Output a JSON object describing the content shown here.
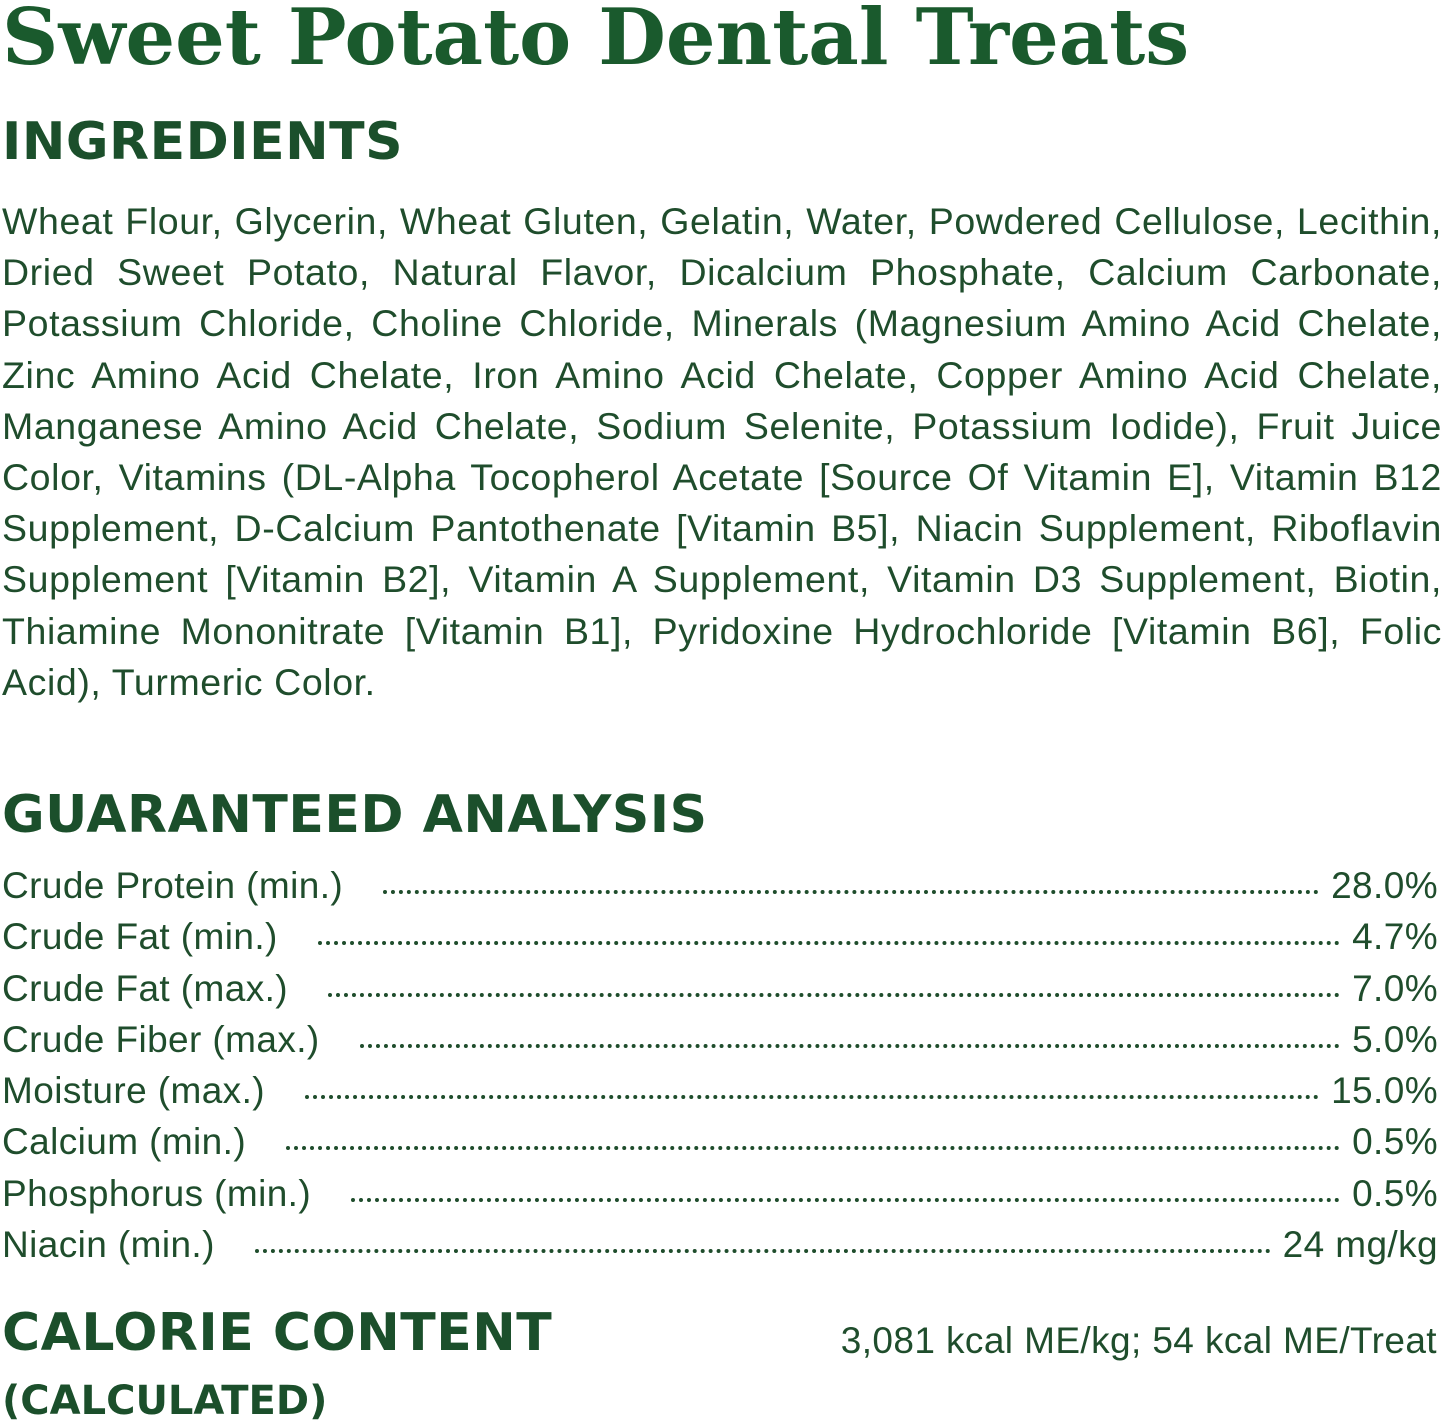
{
  "title": "Sweet Potato Dental Treats",
  "colors": {
    "title": "#1a5a2d",
    "heading": "#1b4f2b",
    "text": "#1f4d2c",
    "background": "#ffffff"
  },
  "ingredients": {
    "heading": "INGREDIENTS",
    "text": "Wheat Flour, Glycerin, Wheat Gluten, Gelatin, Water, Powdered Cellulose, Lecithin, Dried Sweet Potato, Natural Flavor, Dicalcium Phosphate, Calcium Carbonate, Potassium Chloride, Choline Chloride, Minerals (Magnesium Amino Acid Chelate, Zinc Amino Acid Chelate, Iron Amino Acid Chelate, Copper Amino Acid Chelate, Manganese Amino Acid Chelate, Sodium Selenite, Potassium Iodide), Fruit Juice Color, Vitamins (DL-Alpha Tocopherol Acetate [Source Of Vitamin E], Vitamin B12 Supplement, D-Calcium Pantothenate [Vitamin B5], Niacin Supplement, Riboflavin Supplement [Vitamin B2], Vitamin A Supplement, Vitamin D3 Supplement, Biotin, Thiamine Mononitrate [Vitamin B1], Pyridoxine Hydrochloride [Vitamin B6], Folic Acid), Turmeric Color."
  },
  "analysis": {
    "heading": "GUARANTEED ANALYSIS",
    "rows": [
      {
        "label": "Crude Protein (min.)",
        "value": "28.0%"
      },
      {
        "label": "Crude Fat (min.)",
        "value": "4.7%"
      },
      {
        "label": "Crude Fat (max.)",
        "value": "7.0%"
      },
      {
        "label": "Crude Fiber (max.)",
        "value": "5.0%"
      },
      {
        "label": "Moisture (max.)",
        "value": "15.0%"
      },
      {
        "label": "Calcium (min.)",
        "value": "0.5%"
      },
      {
        "label": "Phosphorus (min.)",
        "value": "0.5%"
      },
      {
        "label": "Niacin (min.)",
        "value": "24 mg/kg"
      }
    ]
  },
  "calorie": {
    "heading": "CALORIE CONTENT",
    "subheading": "(CALCULATED)",
    "value": "3,081 kcal ME/kg; 54 kcal ME/Treat"
  }
}
